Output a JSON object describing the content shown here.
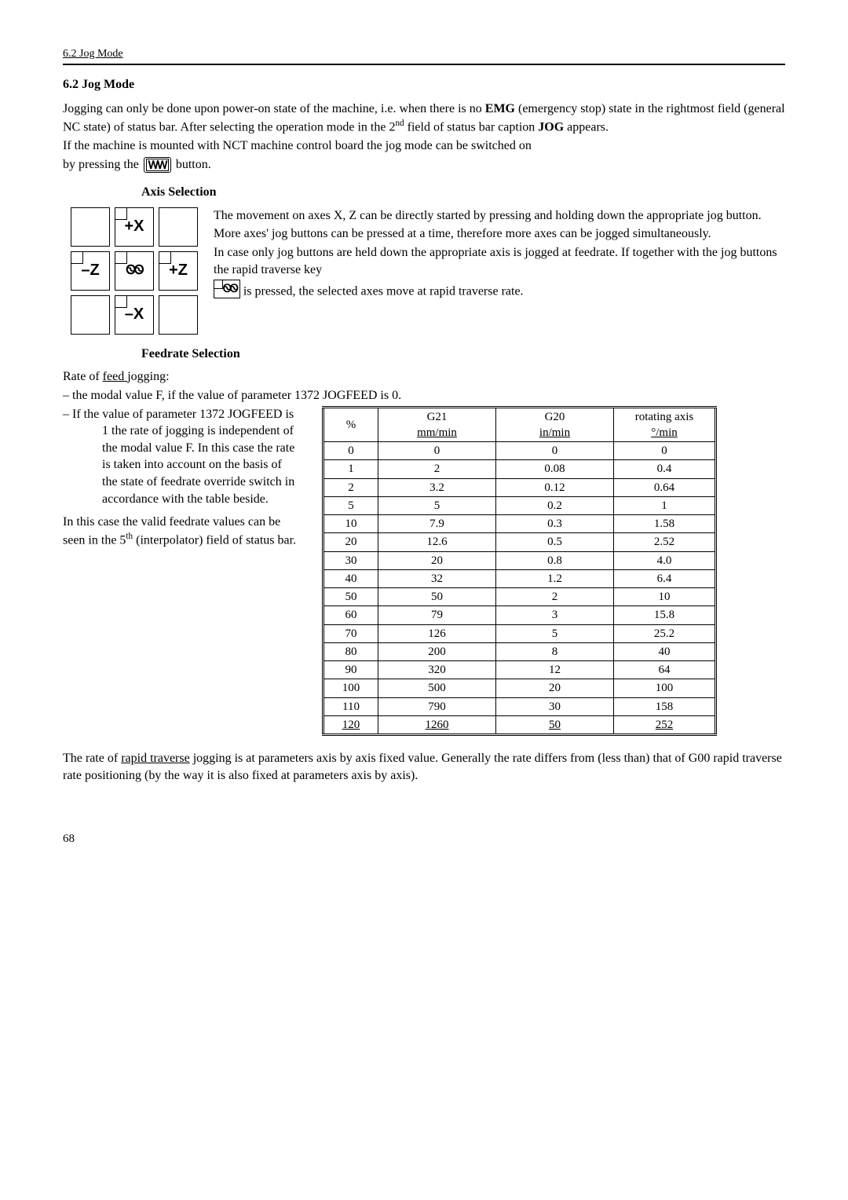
{
  "header": {
    "text": "6.2 Jog Mode"
  },
  "section_title": "6.2 Jog Mode",
  "intro": {
    "p1a": "Jogging can only be done upon power-on state of the machine, i.e. when there is no ",
    "emg": "EMG",
    "p1b": " (emergency stop) state in the rightmost field (general NC state) of status bar. After selecting the operation mode in the 2",
    "p1c": " field of status bar caption ",
    "jog": "JOG",
    "p1d": " appears.",
    "p2": "If the machine is mounted with NCT machine control board the jog mode can be switched on",
    "p3a": "by pressing the ",
    "p3b": " button.",
    "jog_key_glyph": "ᎳᎳ"
  },
  "axis_heading": "Axis Selection",
  "axis_labels": {
    "px": "+X",
    "mz": "–Z",
    "rapid": "ᏫᏫ",
    "pz": "+Z",
    "mx": "–X"
  },
  "axis_text": {
    "t1": "The movement on axes X,  Z can be directly started by pressing and holding down the appropriate jog button.",
    "t2": "More axes' jog buttons can be pressed at a time, therefore more axes can be jogged simultaneously.",
    "t3": "In case only jog buttons are held down the appropriate axis is jogged at feedrate. If together with the jog buttons the rapid traverse key",
    "t4": " is pressed, the selected axes move at rapid traverse rate.",
    "rapid_glyph": "ᏫᏫ"
  },
  "feedrate_heading": "Feedrate Selection",
  "feed_intro": {
    "l1a": "Rate of ",
    "l1u": "feed ",
    "l1b": "jogging:",
    "l2": " – the modal value F, if the value of parameter 1372 JOGFEED is 0.",
    "l3": " – If the value of parameter 1372 JOGFEED is 1 the rate of jogging is independent of the modal value F. In this case the rate is taken into account on the basis of the state of feedrate override switch in accordance with the table beside.",
    "l4a": "In this case the valid feedrate values can be seen in the 5",
    "l4b": " (interpolator) field of status bar."
  },
  "table": {
    "col_widths": [
      "70px",
      "150px",
      "150px",
      "130px"
    ],
    "headers": {
      "h1": "%",
      "h2a": "G21",
      "h2b": "mm/min",
      "h3a": "G20",
      "h3b": "in/min",
      "h4a": "rotating axis",
      "h4b": "°/min"
    },
    "rows": [
      [
        "0",
        "0",
        "0",
        "0"
      ],
      [
        "1",
        "2",
        "0.08",
        "0.4"
      ],
      [
        "2",
        "3.2",
        "0.12",
        "0.64"
      ],
      [
        "5",
        "5",
        "0.2",
        "1"
      ],
      [
        "10",
        "7.9",
        "0.3",
        "1.58"
      ],
      [
        "20",
        "12.6",
        "0.5",
        "2.52"
      ],
      [
        "30",
        "20",
        "0.8",
        "4.0"
      ],
      [
        "40",
        "32",
        "1.2",
        "6.4"
      ],
      [
        "50",
        "50",
        "2",
        "10"
      ],
      [
        "60",
        "79",
        "3",
        "15.8"
      ],
      [
        "70",
        "126",
        "5",
        "25.2"
      ],
      [
        "80",
        "200",
        "8",
        "40"
      ],
      [
        "90",
        "320",
        "12",
        "64"
      ],
      [
        "100",
        "500",
        "20",
        "100"
      ],
      [
        "110",
        "790",
        "30",
        "158"
      ],
      [
        "120",
        "1260",
        "50",
        "252"
      ]
    ]
  },
  "closing": {
    "a": "The rate of ",
    "u": "rapid traverse",
    "b": " jogging is at parameters axis by axis fixed value. Generally the rate differs from (less than) that of G00 rapid traverse rate positioning (by the way it is also fixed at parameters axis by axis)."
  },
  "page_number": "68"
}
